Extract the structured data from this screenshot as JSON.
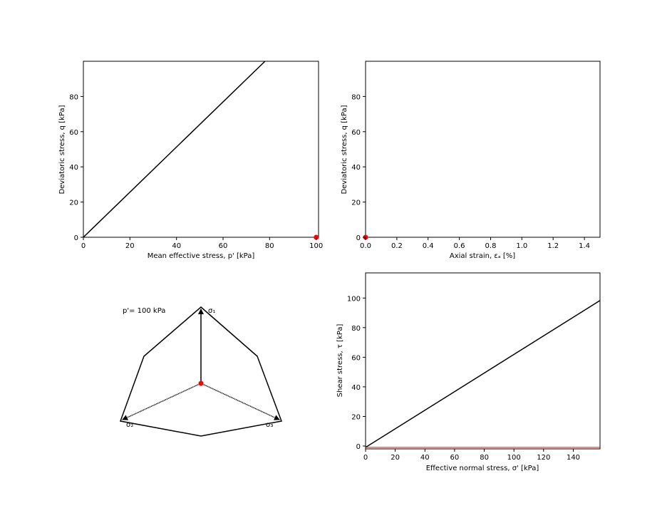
{
  "chart_data": [
    {
      "type": "line",
      "xlabel": "Mean effective stress, p' [kPa]",
      "ylabel": "Deviatoric stress, q [kPa]",
      "xlim": [
        0,
        101
      ],
      "ylim": [
        0,
        100
      ],
      "xticks": [
        "0",
        "20",
        "40",
        "60",
        "80",
        "100"
      ],
      "yticks": [
        "0",
        "20",
        "40",
        "60",
        "80"
      ],
      "series": [
        {
          "kind": "line",
          "color": "#000000",
          "x": [
            0,
            78
          ],
          "y": [
            0,
            100
          ]
        },
        {
          "kind": "point",
          "color": "#ff0000",
          "x": [
            100
          ],
          "y": [
            0
          ]
        }
      ]
    },
    {
      "type": "line",
      "xlabel": "Axial strain, εₐ [%]",
      "ylabel": "Deviatoric stress, q [kPa]",
      "xlim": [
        0,
        1.5
      ],
      "ylim": [
        0,
        100
      ],
      "xticks": [
        "0.0",
        "0.2",
        "0.4",
        "0.6",
        "0.8",
        "1.0",
        "1.2",
        "1.4"
      ],
      "yticks": [
        "0",
        "20",
        "40",
        "60",
        "80"
      ],
      "series": [
        {
          "kind": "point",
          "color": "#ff0000",
          "x": [
            0
          ],
          "y": [
            0
          ]
        }
      ]
    },
    {
      "type": "scatter",
      "annotation": "p'= 100 kPa",
      "axis_labels": [
        "σ₁",
        "σ₂",
        "σ₃"
      ],
      "current_point": {
        "color": "#ff0000"
      },
      "outline_color": "#000000"
    },
    {
      "type": "line",
      "xlabel": "Effective normal stress, σ' [kPa]",
      "ylabel": "Shear stress, τ [kPa]",
      "xlim": [
        0,
        158
      ],
      "ylim": [
        -1,
        117
      ],
      "xticks": [
        "0",
        "20",
        "40",
        "60",
        "80",
        "100",
        "120",
        "140"
      ],
      "yticks": [
        "0",
        "20",
        "40",
        "60",
        "80",
        "100"
      ],
      "series": [
        {
          "kind": "line",
          "color": "#000000",
          "x": [
            0,
            158
          ],
          "y": [
            0,
            98.5
          ]
        },
        {
          "kind": "line",
          "color": "#ff0000",
          "x": [
            0,
            158
          ],
          "y": [
            0,
            0
          ]
        }
      ]
    }
  ]
}
